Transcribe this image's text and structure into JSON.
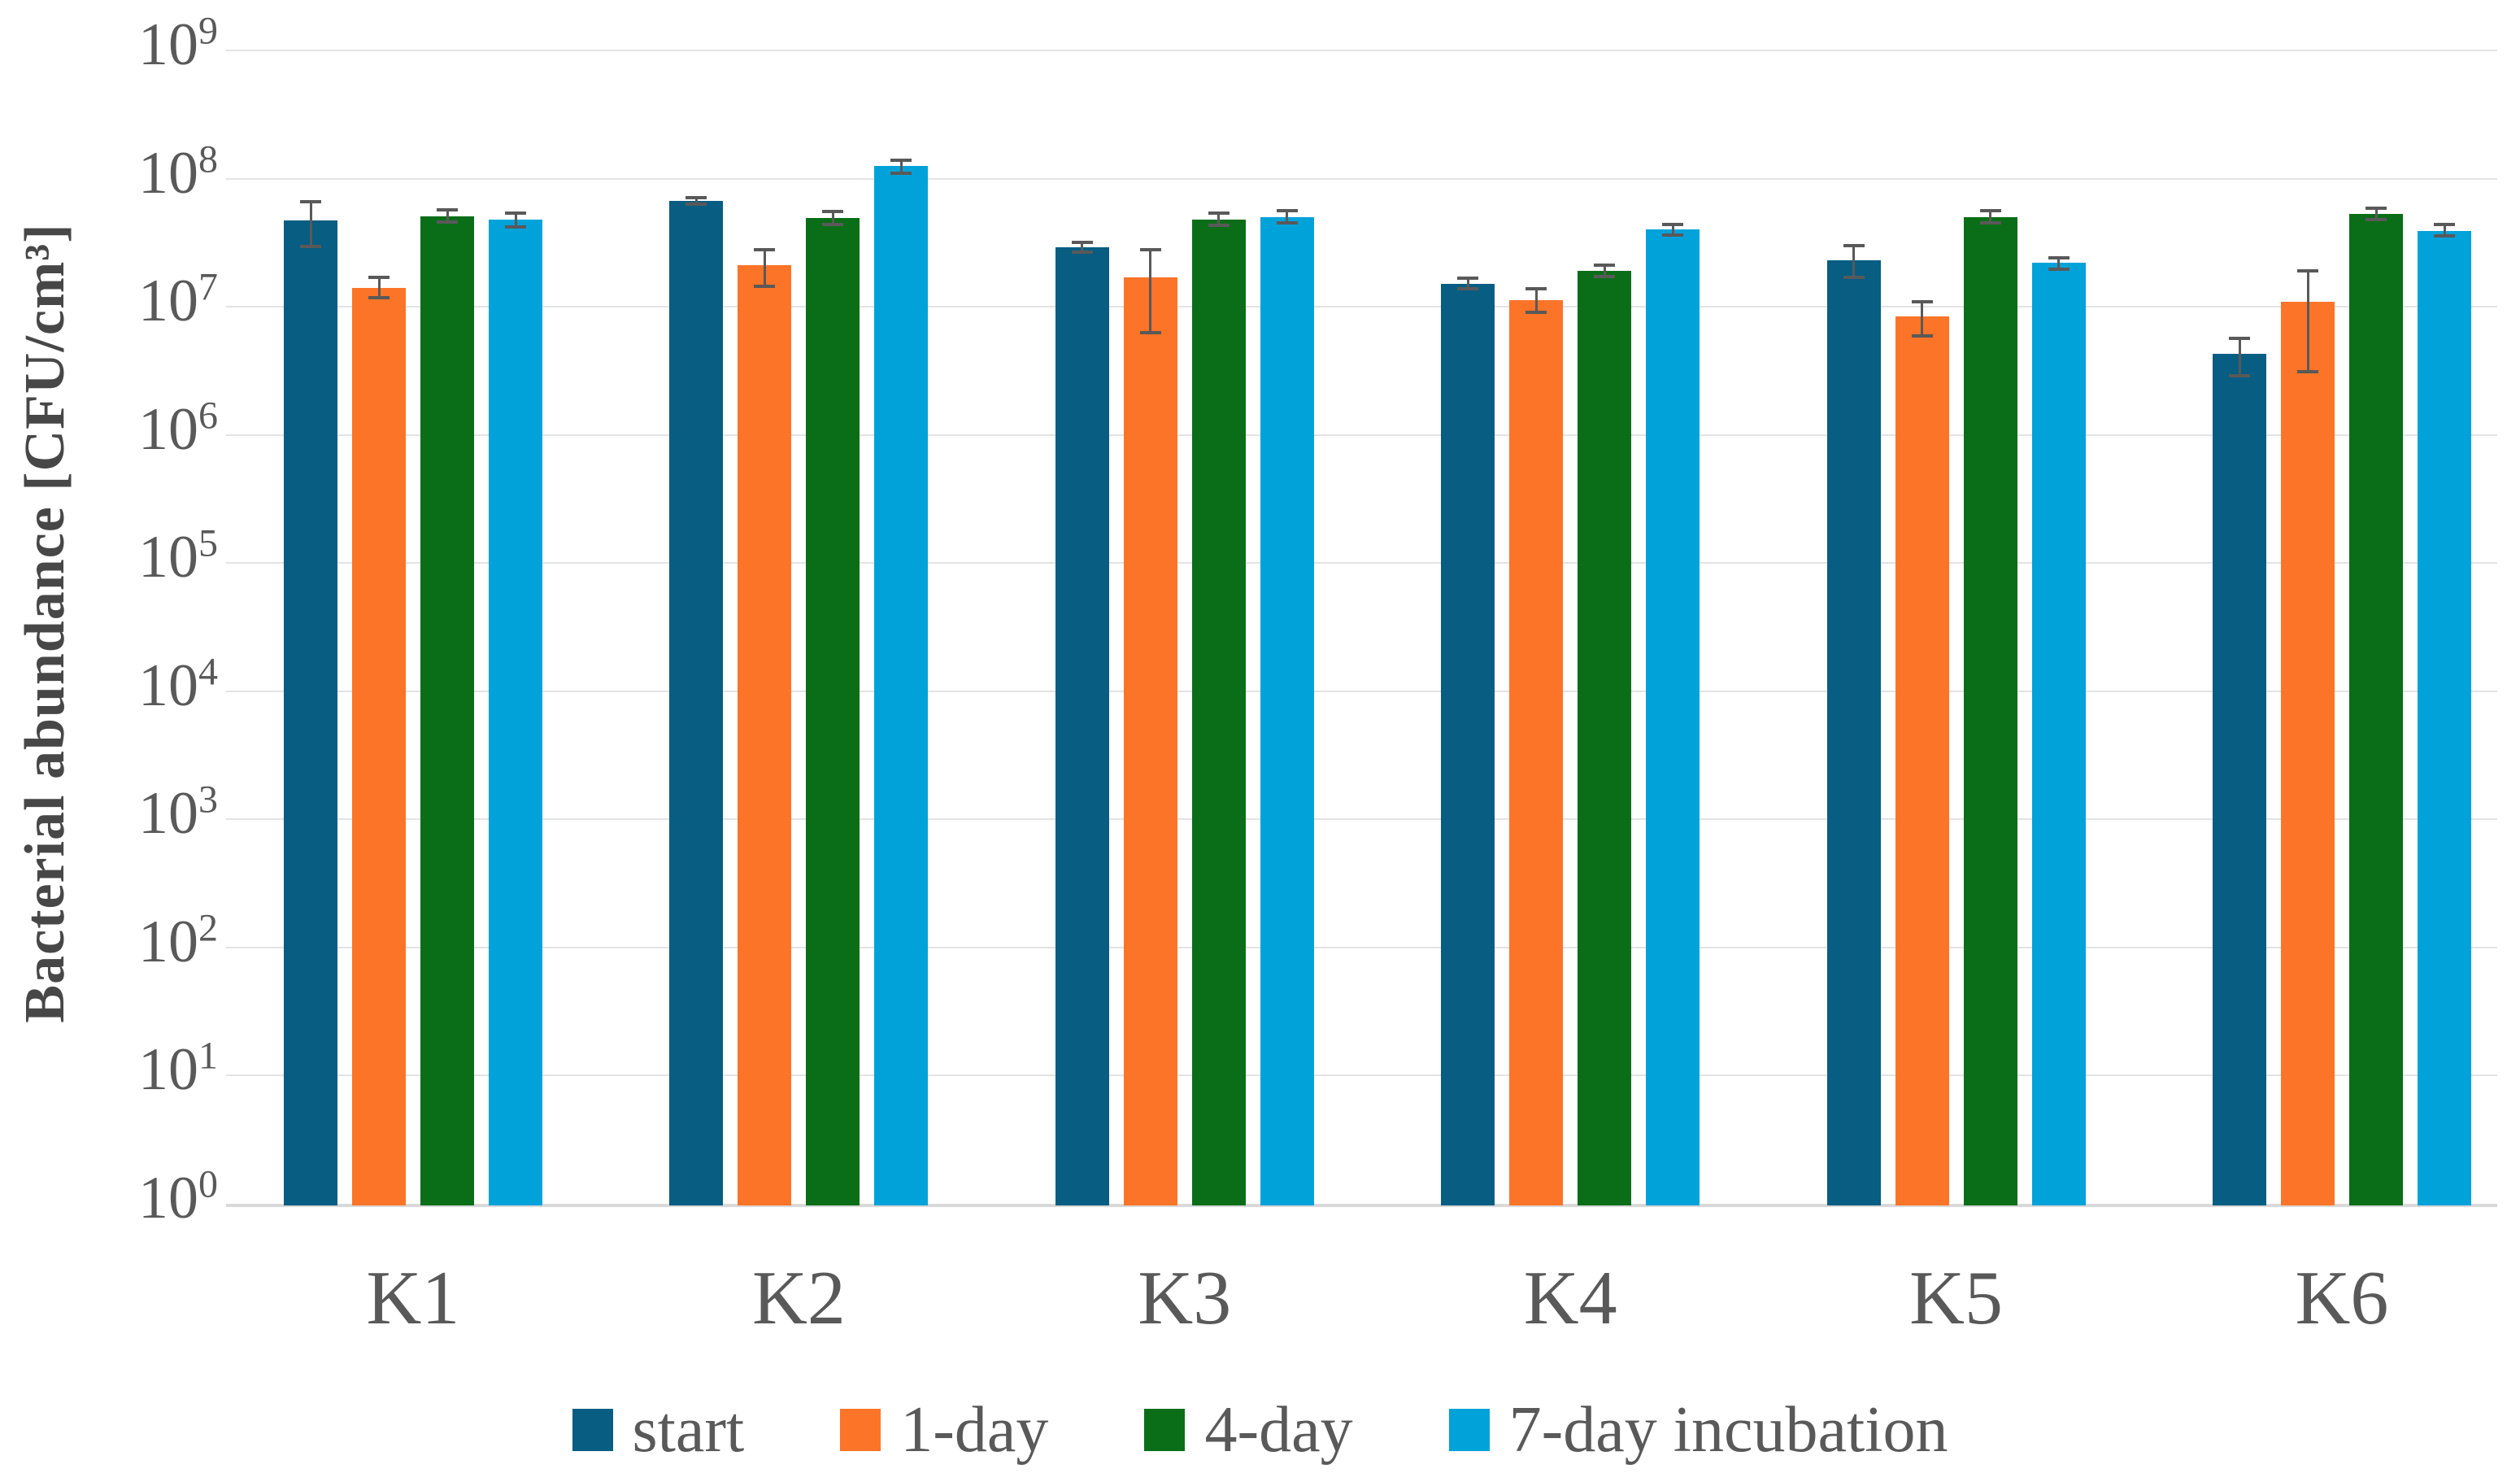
{
  "chart_data": {
    "type": "bar",
    "title": "",
    "xlabel": "",
    "ylabel": "Bacterial abundance [CFU/cm³]",
    "y_scale": "log10",
    "ylim": [
      1,
      1000000000
    ],
    "y_tick_base": "10",
    "y_tick_exponents": [
      9,
      8,
      7,
      6,
      5,
      4,
      3,
      2,
      1,
      0
    ],
    "grid": "horizontal",
    "legend_position": "bottom",
    "categories": [
      "K1",
      "K2",
      "K3",
      "K4",
      "K5",
      "K6"
    ],
    "series": [
      {
        "name": "start",
        "color": "#075d82",
        "values": [
          47000000,
          67000000,
          29000000,
          15000000,
          23000000,
          4300000
        ],
        "err_high": [
          66000000,
          71000000,
          32000000,
          16600000,
          30000000,
          5700000
        ],
        "err_low": [
          29500000,
          63000000,
          26500000,
          13800000,
          17000000,
          2900000
        ]
      },
      {
        "name": "1-day",
        "color": "#fb7428",
        "values": [
          14000000,
          21000000,
          17000000,
          11300000,
          8400000,
          11000000
        ],
        "err_high": [
          17000000,
          28000000,
          28000000,
          13800000,
          11000000,
          19000000
        ],
        "err_low": [
          11800000,
          14500000,
          6300000,
          9100000,
          5900000,
          3100000
        ]
      },
      {
        "name": "4-day",
        "color": "#0a6e18",
        "values": [
          51000000,
          49000000,
          48000000,
          19000000,
          50000000,
          53000000
        ],
        "err_high": [
          57000000,
          55000000,
          54000000,
          21000000,
          56000000,
          59000000
        ],
        "err_low": [
          46000000,
          44000000,
          43500000,
          17300000,
          45000000,
          48000000
        ]
      },
      {
        "name": "7-day incubation",
        "color": "#00a2da",
        "values": [
          48000000,
          126000000,
          50000000,
          40000000,
          22000000,
          39000000
        ],
        "err_high": [
          54000000,
          140000000,
          56000000,
          44000000,
          24000000,
          44000000
        ],
        "err_low": [
          42000000,
          110000000,
          45000000,
          36000000,
          19500000,
          35500000
        ]
      }
    ]
  }
}
